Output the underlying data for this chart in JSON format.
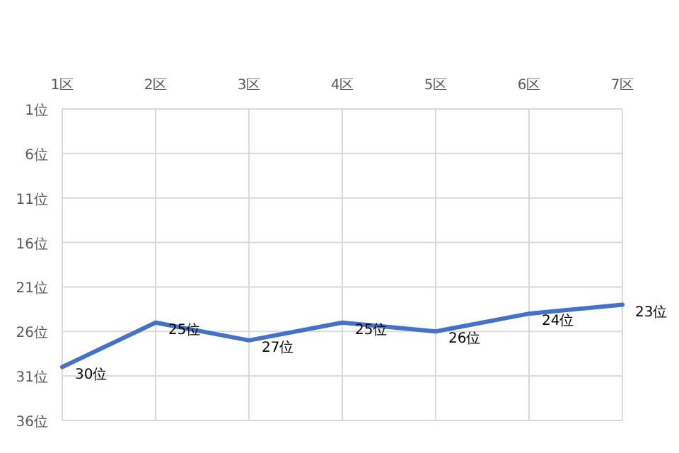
{
  "chart_data": {
    "type": "line",
    "categories": [
      "1区",
      "2区",
      "3区",
      "4区",
      "5区",
      "6区",
      "7区"
    ],
    "series": [
      {
        "color": "#4472c4",
        "values": [
          30,
          25,
          27,
          25,
          26,
          24,
          23
        ],
        "value_labels": [
          "30位",
          "25位",
          "27位",
          "25位",
          "26位",
          "24位",
          "23位"
        ]
      }
    ],
    "ylim": [
      36,
      1
    ],
    "yticks": [
      {
        "value": 1,
        "label": "1位"
      },
      {
        "value": 6,
        "label": "6位"
      },
      {
        "value": 11,
        "label": "11位"
      },
      {
        "value": 16,
        "label": "16位"
      },
      {
        "value": 21,
        "label": "21位"
      },
      {
        "value": 26,
        "label": "26位"
      },
      {
        "value": 31,
        "label": "31位"
      },
      {
        "value": 36,
        "label": "36位"
      }
    ],
    "grid": true
  }
}
